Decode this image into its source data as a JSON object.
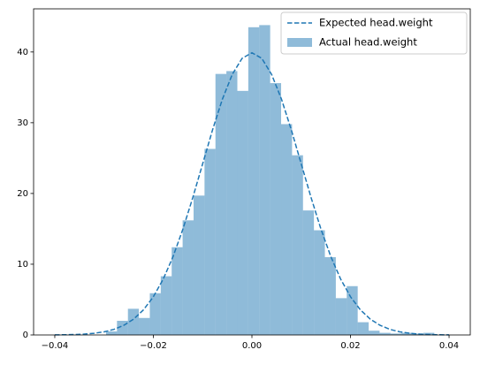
{
  "chart_data": {
    "type": "histogram",
    "xlim": [
      -0.0443,
      0.0443
    ],
    "ylim": [
      0,
      46.1
    ],
    "xticks": [
      {
        "value": -0.04,
        "label": "−0.04"
      },
      {
        "value": -0.02,
        "label": "−0.02"
      },
      {
        "value": 0,
        "label": "0.00"
      },
      {
        "value": 0.02,
        "label": "0.02"
      },
      {
        "value": 0.04,
        "label": "0.04"
      }
    ],
    "yticks": [
      0,
      10,
      20,
      30,
      40
    ],
    "legend": "upper right",
    "series": [
      {
        "name": "Expected head.weight",
        "type": "line",
        "style": "dashed",
        "color": "#1f77b4",
        "x": [
          -0.04,
          -0.038,
          -0.036,
          -0.034,
          -0.032,
          -0.03,
          -0.028,
          -0.026,
          -0.024,
          -0.022,
          -0.02,
          -0.018,
          -0.016,
          -0.014,
          -0.012,
          -0.01,
          -0.008,
          -0.006,
          -0.004,
          -0.002,
          0,
          0.002,
          0.004,
          0.006,
          0.008,
          0.01,
          0.012,
          0.014,
          0.016,
          0.018,
          0.02,
          0.022,
          0.024,
          0.026,
          0.028,
          0.03,
          0.032,
          0.034,
          0.036,
          0.038,
          0.04
        ],
        "values": [
          0.01,
          0.03,
          0.06,
          0.12,
          0.24,
          0.44,
          0.79,
          1.36,
          2.24,
          3.55,
          5.4,
          7.89,
          11.09,
          14.97,
          19.42,
          24.19,
          28.97,
          33.32,
          36.82,
          39.1,
          39.89,
          39.1,
          36.82,
          33.32,
          28.97,
          24.19,
          19.42,
          14.97,
          11.09,
          7.89,
          5.4,
          3.55,
          2.24,
          1.36,
          0.79,
          0.44,
          0.24,
          0.12,
          0.06,
          0.03,
          0.01
        ]
      },
      {
        "name": "Actual head.weight",
        "type": "histogram",
        "color": "#1f77b4",
        "alpha": 0.5,
        "bins": [
          -0.0296,
          -0.02738,
          -0.02516,
          -0.02294,
          -0.02072,
          -0.0185,
          -0.01628,
          -0.01406,
          -0.01184,
          -0.00962,
          -0.0074,
          -0.00518,
          -0.00296,
          -0.00074,
          0.00148,
          0.0037,
          0.00592,
          0.00814,
          0.01036,
          0.01258,
          0.0148,
          0.01702,
          0.01924,
          0.02146,
          0.02368,
          0.0259,
          0.02812,
          0.03034,
          0.03256,
          0.03478,
          0.037,
          0.03922
        ],
        "values": [
          0.5,
          2.0,
          3.7,
          2.4,
          5.9,
          8.3,
          12.4,
          16.2,
          19.7,
          26.3,
          36.9,
          37.3,
          34.5,
          43.5,
          43.8,
          35.6,
          29.8,
          25.4,
          17.6,
          14.8,
          11.0,
          5.2,
          6.9,
          1.8,
          0.6,
          0.3,
          0.2,
          0.3,
          0.2,
          0.3,
          0
        ]
      }
    ]
  }
}
